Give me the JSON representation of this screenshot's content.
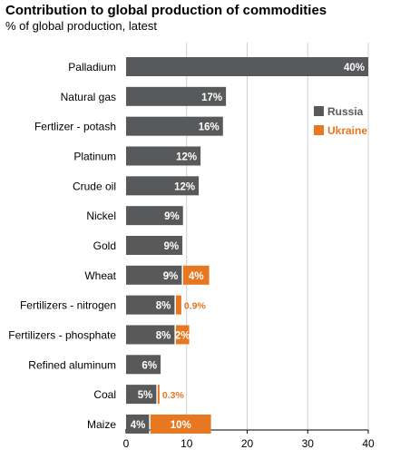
{
  "chart_data": {
    "type": "bar",
    "orientation": "horizontal",
    "stacked": true,
    "title": "Contribution to global production of commodities",
    "subtitle": "% of global production, latest",
    "categories": [
      "Palladium",
      "Natural gas",
      "Fertlizer - potash",
      "Platinum",
      "Crude oil",
      "Nickel",
      "Gold",
      "Wheat",
      "Fertilizers - nitrogen",
      "Fertilizers - phosphate",
      "Refined aluminum",
      "Coal",
      "Maize"
    ],
    "series": [
      {
        "name": "Russia",
        "color": "#58595b",
        "values": [
          40,
          16.5,
          16,
          12.3,
          12,
          9.4,
          9.3,
          9.2,
          8,
          8,
          5.7,
          5,
          3.8
        ],
        "labels": [
          "40%",
          "17%",
          "16%",
          "12%",
          "12%",
          "9%",
          "9%",
          "9%",
          "8%",
          "8%",
          "6%",
          "5%",
          "4%"
        ]
      },
      {
        "name": "Ukraine",
        "color": "#e87722",
        "values": [
          0,
          0,
          0,
          0,
          0,
          0,
          0,
          4.3,
          0.9,
          2.2,
          0,
          0.3,
          10
        ],
        "labels": [
          "",
          "",
          "",
          "",
          "",
          "",
          "",
          "4%",
          "0.9%",
          "2%",
          "",
          "0.3%",
          "10%"
        ]
      }
    ],
    "xlim": [
      0,
      40
    ],
    "xticks": [
      "0",
      "10",
      "20",
      "30",
      "40"
    ],
    "grid": true,
    "legend": "right, upper"
  }
}
